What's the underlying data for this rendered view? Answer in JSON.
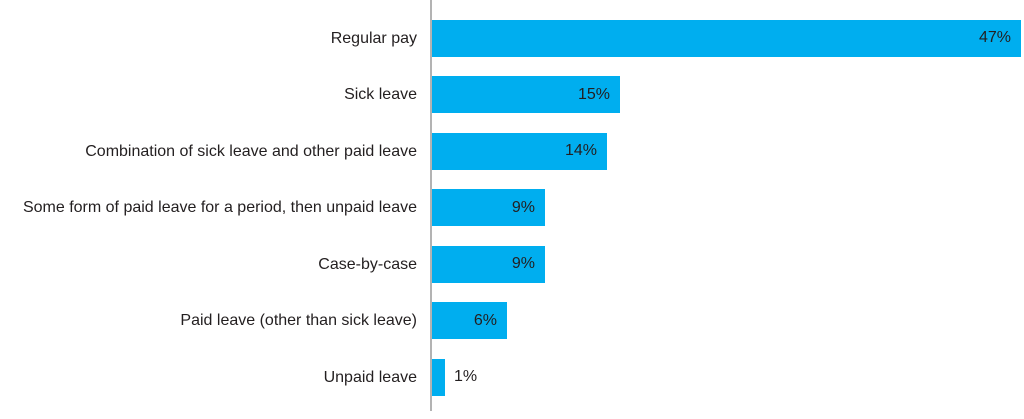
{
  "chart_data": {
    "type": "bar",
    "orientation": "horizontal",
    "title": "",
    "xlabel": "",
    "ylabel": "",
    "grid": false,
    "legend": false,
    "xlim": [
      0,
      47.2
    ],
    "categories": [
      "Regular pay",
      "Sick leave",
      "Combination of sick leave and other paid leave",
      "Some form of paid leave for a period, then unpaid leave",
      "Case-by-case",
      "Paid leave (other than sick leave)",
      "Unpaid leave"
    ],
    "values": [
      47,
      15,
      14,
      9,
      9,
      6,
      1
    ],
    "value_labels": [
      "47%",
      "15%",
      "14%",
      "9%",
      "9%",
      "6%",
      "1%"
    ],
    "bar_color": "#00aeef",
    "text_color": "#231f20",
    "axis_line_color": "#b3b3b3"
  }
}
